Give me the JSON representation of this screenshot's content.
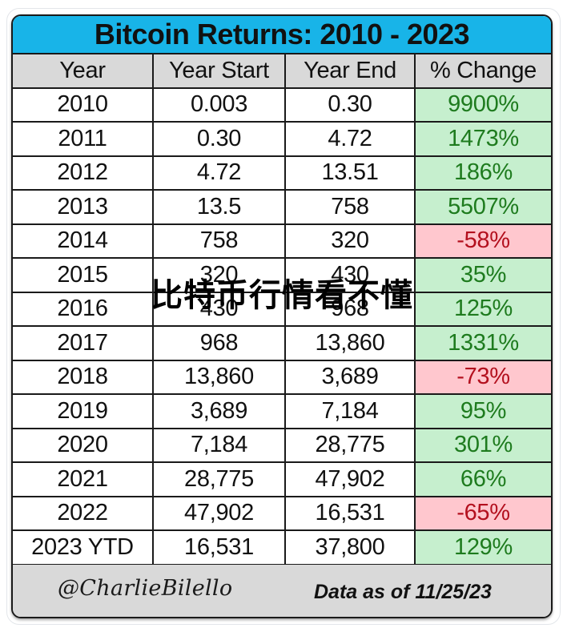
{
  "title": "Bitcoin Returns: 2010 - 2023",
  "columns": [
    "Year",
    "Year Start",
    "Year End",
    "% Change"
  ],
  "rows": [
    {
      "year": "2010",
      "start": "0.003",
      "end": "0.30",
      "change": "9900%",
      "sign": "pos"
    },
    {
      "year": "2011",
      "start": "0.30",
      "end": "4.72",
      "change": "1473%",
      "sign": "pos"
    },
    {
      "year": "2012",
      "start": "4.72",
      "end": "13.51",
      "change": "186%",
      "sign": "pos"
    },
    {
      "year": "2013",
      "start": "13.5",
      "end": "758",
      "change": "5507%",
      "sign": "pos"
    },
    {
      "year": "2014",
      "start": "758",
      "end": "320",
      "change": "-58%",
      "sign": "neg"
    },
    {
      "year": "2015",
      "start": "320",
      "end": "430",
      "change": "35%",
      "sign": "pos"
    },
    {
      "year": "2016",
      "start": "430",
      "end": "968",
      "change": "125%",
      "sign": "pos"
    },
    {
      "year": "2017",
      "start": "968",
      "end": "13,860",
      "change": "1331%",
      "sign": "pos"
    },
    {
      "year": "2018",
      "start": "13,860",
      "end": "3,689",
      "change": "-73%",
      "sign": "neg"
    },
    {
      "year": "2019",
      "start": "3,689",
      "end": "7,184",
      "change": "95%",
      "sign": "pos"
    },
    {
      "year": "2020",
      "start": "7,184",
      "end": "28,775",
      "change": "301%",
      "sign": "pos"
    },
    {
      "year": "2021",
      "start": "28,775",
      "end": "47,902",
      "change": "66%",
      "sign": "pos"
    },
    {
      "year": "2022",
      "start": "47,902",
      "end": "16,531",
      "change": "-65%",
      "sign": "neg"
    },
    {
      "year": "2023 YTD",
      "start": "16,531",
      "end": "37,800",
      "change": "129%",
      "sign": "pos"
    }
  ],
  "footer": {
    "handle": "@CharlieBilello",
    "as_of": "Data as of 11/25/23"
  },
  "watermark": "比特币行情看不懂",
  "colors": {
    "title_bg": "#18b4e8",
    "header_bg": "#d9d9d9",
    "positive_bg": "#c6efce",
    "positive_text": "#1e7b1e",
    "negative_bg": "#ffc7ce",
    "negative_text": "#b3101e"
  },
  "chart_data": {
    "type": "table",
    "title": "Bitcoin Returns: 2010 - 2023",
    "columns": [
      "Year",
      "Year Start",
      "Year End",
      "% Change"
    ],
    "categories": [
      "2010",
      "2011",
      "2012",
      "2013",
      "2014",
      "2015",
      "2016",
      "2017",
      "2018",
      "2019",
      "2020",
      "2021",
      "2022",
      "2023 YTD"
    ],
    "series": [
      {
        "name": "Year Start",
        "values": [
          0.003,
          0.3,
          4.72,
          13.5,
          758,
          320,
          430,
          968,
          13860,
          3689,
          7184,
          28775,
          47902,
          16531
        ]
      },
      {
        "name": "Year End",
        "values": [
          0.3,
          4.72,
          13.51,
          758,
          320,
          430,
          968,
          13860,
          3689,
          7184,
          28775,
          47902,
          16531,
          37800
        ]
      },
      {
        "name": "% Change",
        "values": [
          9900,
          1473,
          186,
          5507,
          -58,
          35,
          125,
          1331,
          -73,
          95,
          301,
          66,
          -65,
          129
        ]
      }
    ],
    "annotations": [
      "@CharlieBilello",
      "Data as of 11/25/23"
    ]
  }
}
